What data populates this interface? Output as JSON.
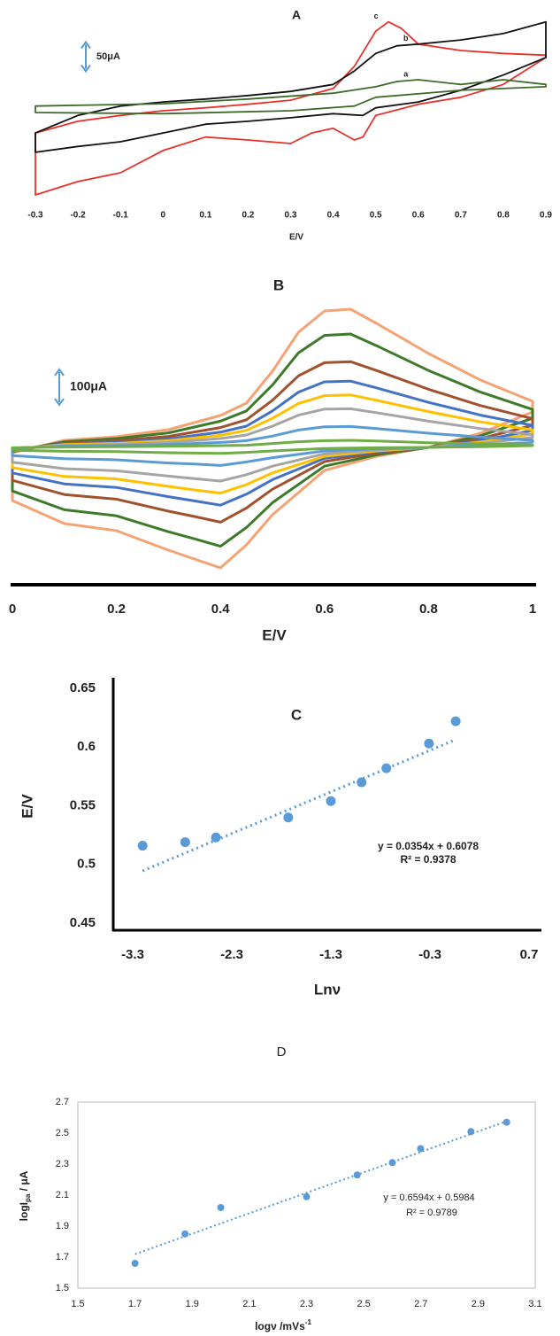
{
  "chart_data": [
    {
      "type": "line",
      "title": "A",
      "x_label": "E/V",
      "xlim": [
        -0.3,
        0.9
      ],
      "xticks": [
        -0.3,
        -0.2,
        -0.1,
        0,
        0.1,
        0.2,
        0.3,
        0.4,
        0.5,
        0.6,
        0.7,
        0.8,
        0.9
      ],
      "scale_bar": {
        "value": 50,
        "label": "50μA"
      },
      "series": [
        {
          "name": "c",
          "color": "#e8312a",
          "x": [
            -0.3,
            -0.2,
            -0.1,
            0,
            0.1,
            0.2,
            0.3,
            0.4,
            0.45,
            0.5,
            0.53,
            0.56,
            0.6,
            0.7,
            0.8,
            0.9,
            0.9,
            0.8,
            0.7,
            0.6,
            0.5,
            0.47,
            0.45,
            0.4,
            0.35,
            0.3,
            0.2,
            0.1,
            0,
            -0.1,
            -0.2,
            -0.3
          ],
          "values": [
            -38,
            -18,
            -8,
            0,
            5,
            11,
            18,
            38,
            76,
            136,
            152,
            141,
            114,
            103,
            98,
            95,
            91,
            45,
            23,
            11,
            -8,
            -45,
            -50,
            -30,
            -38,
            -56,
            -50,
            -45,
            -68,
            -106,
            -121,
            -144
          ]
        },
        {
          "name": "b",
          "color": "#111111",
          "x": [
            -0.3,
            -0.2,
            -0.1,
            0,
            0.1,
            0.2,
            0.3,
            0.4,
            0.45,
            0.5,
            0.55,
            0.6,
            0.7,
            0.8,
            0.9,
            0.9,
            0.8,
            0.7,
            0.6,
            0.5,
            0.47,
            0.4,
            0.3,
            0.2,
            0.1,
            0,
            -0.1,
            -0.2,
            -0.3
          ],
          "values": [
            -38,
            -8,
            8,
            15,
            20,
            26,
            33,
            45,
            68,
            98,
            111,
            114,
            121,
            132,
            152,
            91,
            61,
            35,
            15,
            5,
            -8,
            -5,
            -12,
            -18,
            -23,
            -38,
            -53,
            -61,
            -71
          ]
        },
        {
          "name": "a",
          "color": "#3e6b2a",
          "x": [
            -0.3,
            0,
            0.2,
            0.4,
            0.5,
            0.55,
            0.6,
            0.7,
            0.8,
            0.9,
            0.9,
            0.7,
            0.5,
            0.45,
            0.3,
            0,
            -0.3
          ],
          "values": [
            8,
            12,
            20,
            30,
            41,
            50,
            53,
            45,
            53,
            45,
            41,
            35,
            23,
            8,
            0,
            -5,
            -3
          ]
        }
      ]
    },
    {
      "type": "line",
      "title": "B",
      "x_label": "E/V",
      "xlim": [
        0,
        1
      ],
      "xticks": [
        0,
        0.2,
        0.4,
        0.6,
        0.8,
        1
      ],
      "scale_bar": {
        "value": 100,
        "label": "100μA"
      },
      "series": [
        {
          "color": "#f4a374",
          "x": [
            0,
            0.1,
            0.2,
            0.3,
            0.4,
            0.45,
            0.5,
            0.55,
            0.6,
            0.65,
            0.7,
            0.8,
            0.9,
            1,
            1,
            0.9,
            0.8,
            0.7,
            0.6,
            0.5,
            0.45,
            0.4,
            0.35,
            0.3,
            0.2,
            0.1,
            0
          ],
          "values": [
            -15,
            20,
            30,
            50,
            90,
            125,
            215,
            325,
            385,
            390,
            350,
            265,
            190,
            130,
            100,
            40,
            0,
            -25,
            -65,
            -190,
            -275,
            -340,
            -315,
            -290,
            -235,
            -215,
            -150
          ]
        },
        {
          "color": "#3d7a2a",
          "x": [
            0,
            0.1,
            0.2,
            0.3,
            0.4,
            0.45,
            0.5,
            0.55,
            0.6,
            0.65,
            0.7,
            0.8,
            0.9,
            1,
            1,
            0.9,
            0.8,
            0.7,
            0.6,
            0.5,
            0.45,
            0.4,
            0.35,
            0.3,
            0.2,
            0.1,
            0
          ],
          "values": [
            -12,
            16,
            25,
            41,
            74,
            103,
            176,
            267,
            316,
            320,
            287,
            217,
            156,
            107,
            82,
            33,
            0,
            -21,
            -53,
            -156,
            -226,
            -279,
            -258,
            -238,
            -193,
            -176,
            -123
          ]
        },
        {
          "color": "#a0522d",
          "x": [
            0,
            0.1,
            0.2,
            0.3,
            0.4,
            0.45,
            0.5,
            0.55,
            0.6,
            0.65,
            0.7,
            0.8,
            0.9,
            1,
            1,
            0.9,
            0.8,
            0.7,
            0.6,
            0.5,
            0.45,
            0.4,
            0.35,
            0.3,
            0.2,
            0.1,
            0
          ],
          "values": [
            -9,
            12,
            19,
            31,
            56,
            78,
            133,
            202,
            239,
            242,
            217,
            164,
            118,
            81,
            62,
            25,
            0,
            -16,
            -40,
            -118,
            -171,
            -211,
            -195,
            -180,
            -146,
            -133,
            -93
          ]
        },
        {
          "color": "#4472c4",
          "x": [
            0,
            0.1,
            0.2,
            0.3,
            0.4,
            0.45,
            0.5,
            0.55,
            0.6,
            0.65,
            0.7,
            0.8,
            0.9,
            1,
            1,
            0.9,
            0.8,
            0.7,
            0.6,
            0.5,
            0.45,
            0.4,
            0.35,
            0.3,
            0.2,
            0.1,
            0
          ],
          "values": [
            -7,
            10,
            14,
            24,
            43,
            60,
            103,
            156,
            185,
            187,
            168,
            127,
            91,
            62,
            48,
            19,
            0,
            -12,
            -31,
            -91,
            -132,
            -163,
            -151,
            -139,
            -113,
            -103,
            -72
          ]
        },
        {
          "color": "#ffc000",
          "x": [
            0,
            0.1,
            0.2,
            0.3,
            0.4,
            0.45,
            0.5,
            0.55,
            0.6,
            0.65,
            0.7,
            0.8,
            0.9,
            1,
            1,
            0.9,
            0.8,
            0.7,
            0.6,
            0.5,
            0.45,
            0.4,
            0.35,
            0.3,
            0.2,
            0.1,
            0
          ],
          "values": [
            -6,
            8,
            11,
            19,
            34,
            48,
            82,
            124,
            146,
            148,
            133,
            101,
            72,
            49,
            38,
            15,
            0,
            -10,
            -25,
            -72,
            -105,
            -129,
            -120,
            -110,
            -89,
            -82,
            -57
          ]
        },
        {
          "color": "#a5a5a5",
          "x": [
            0,
            0.1,
            0.2,
            0.3,
            0.4,
            0.45,
            0.5,
            0.55,
            0.6,
            0.65,
            0.7,
            0.8,
            0.9,
            1,
            1,
            0.9,
            0.8,
            0.7,
            0.6,
            0.5,
            0.45,
            0.4,
            0.35,
            0.3,
            0.2,
            0.1,
            0
          ],
          "values": [
            -4,
            6,
            8,
            14,
            25,
            35,
            60,
            91,
            108,
            109,
            98,
            74,
            53,
            36,
            28,
            11,
            0,
            -7,
            -18,
            -53,
            -77,
            -95,
            -88,
            -81,
            -66,
            -60,
            -42
          ]
        },
        {
          "color": "#5b9bd5",
          "x": [
            0,
            0.1,
            0.2,
            0.3,
            0.4,
            0.45,
            0.5,
            0.55,
            0.6,
            0.65,
            0.7,
            0.8,
            0.9,
            1,
            1,
            0.9,
            0.8,
            0.7,
            0.6,
            0.5,
            0.45,
            0.4,
            0.35,
            0.3,
            0.2,
            0.1,
            0
          ],
          "values": [
            -2,
            3,
            5,
            8,
            14,
            19,
            32,
            49,
            58,
            59,
            53,
            40,
            29,
            20,
            15,
            6,
            0,
            -4,
            -10,
            -29,
            -41,
            -51,
            -47,
            -44,
            -35,
            -32,
            -23
          ]
        },
        {
          "color": "#70ad47",
          "x": [
            0,
            0.1,
            0.2,
            0.3,
            0.4,
            0.45,
            0.5,
            0.55,
            0.6,
            0.65,
            0.7,
            0.8,
            0.9,
            1,
            1,
            0.9,
            0.8,
            0.7,
            0.6,
            0.5,
            0.45,
            0.4,
            0.35,
            0.3,
            0.2,
            0.1,
            0
          ],
          "values": [
            -1,
            1,
            2,
            3,
            5,
            6,
            11,
            16,
            19,
            20,
            18,
            13,
            10,
            7,
            5,
            2,
            0,
            -1,
            -3,
            -10,
            -14,
            -17,
            -16,
            -15,
            -12,
            -11,
            -8
          ]
        }
      ]
    },
    {
      "type": "scatter",
      "title": "C",
      "x_label": "Lnν",
      "y_label": "E/V",
      "color": "#5b9bd5",
      "xlim": [
        -3.3,
        0.7
      ],
      "xticks": [
        -3.3,
        -2.3,
        -1.3,
        -0.3,
        0.7
      ],
      "ylim": [
        0.45,
        0.65
      ],
      "yticks": [
        0.45,
        0.5,
        0.55,
        0.6,
        0.65
      ],
      "x": [
        -3.2,
        -2.77,
        -2.46,
        -1.73,
        -1.3,
        -0.99,
        -0.74,
        -0.31,
        -0.04
      ],
      "values": [
        0.516,
        0.519,
        0.523,
        0.54,
        0.554,
        0.57,
        0.582,
        0.603,
        0.622
      ],
      "trendline": {
        "slope": 0.0354,
        "intercept": 0.6078,
        "label": "y = 0.0354x + 0.6078"
      },
      "r2_label": "R² = 0.9378"
    },
    {
      "type": "scatter",
      "title": "D",
      "x_label": [
        "logν /mVs",
        "-1"
      ],
      "y_label": [
        "logI",
        "pa",
        " / μA"
      ],
      "color": "#5b9bd5",
      "xlim": [
        1.5,
        3.1
      ],
      "xticks": [
        1.5,
        1.7,
        1.9,
        2.1,
        2.3,
        2.5,
        2.7,
        2.9,
        3.1
      ],
      "ylim": [
        1.5,
        2.7
      ],
      "yticks": [
        1.5,
        1.7,
        1.9,
        2.1,
        2.3,
        2.5,
        2.7
      ],
      "x": [
        1.7,
        1.875,
        2,
        2.3,
        2.477,
        2.6,
        2.699,
        2.875,
        3
      ],
      "values": [
        1.66,
        1.85,
        2.02,
        2.09,
        2.23,
        2.31,
        2.4,
        2.51,
        2.57
      ],
      "trendline": {
        "slope": 0.6594,
        "intercept": 0.5984,
        "label": "y = 0.6594x + 0.5984"
      },
      "r2_label": "R² = 0.9789"
    }
  ]
}
